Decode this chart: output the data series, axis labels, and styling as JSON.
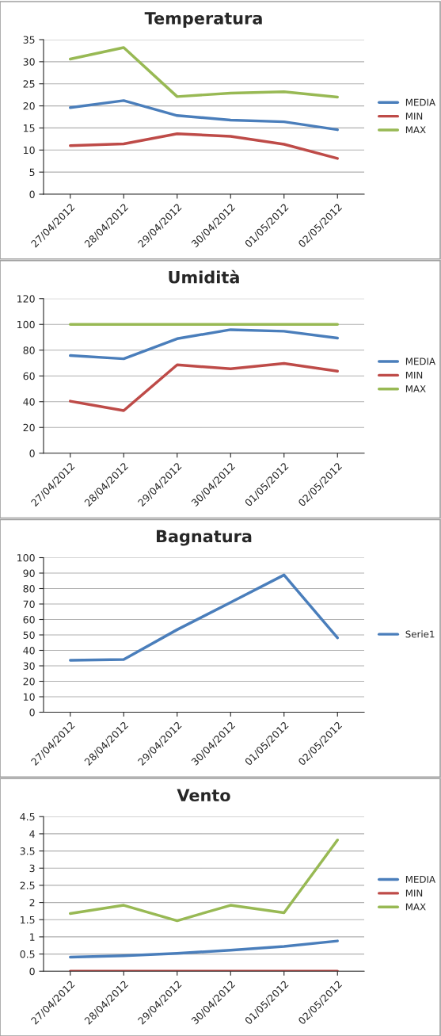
{
  "chart_data": [
    {
      "type": "line",
      "title": "Temperatura",
      "categories": [
        "27/04/2012",
        "28/04/2012",
        "29/04/2012",
        "30/04/2012",
        "01/05/2012",
        "02/05/2012"
      ],
      "series": [
        {
          "name": "MEDIA",
          "color": "#4a7ebb",
          "values": [
            19.6,
            21.2,
            17.8,
            16.8,
            16.4,
            14.6
          ]
        },
        {
          "name": "MIN",
          "color": "#be4b48",
          "values": [
            11.0,
            11.4,
            13.7,
            13.1,
            11.3,
            8.1
          ]
        },
        {
          "name": "MAX",
          "color": "#98b954",
          "values": [
            30.6,
            33.2,
            22.1,
            22.9,
            23.2,
            22.0
          ]
        }
      ],
      "ylim": [
        0,
        35
      ],
      "yticks": [
        0,
        5,
        10,
        15,
        20,
        25,
        30,
        35
      ],
      "grid": "y",
      "legend": "right",
      "marker": "none"
    },
    {
      "type": "line",
      "title": "Umidità",
      "categories": [
        "27/04/2012",
        "28/04/2012",
        "29/04/2012",
        "30/04/2012",
        "01/05/2012",
        "02/05/2012"
      ],
      "series": [
        {
          "name": "MEDIA",
          "color": "#4a7ebb",
          "values": [
            75.8,
            73.3,
            88.9,
            95.9,
            94.7,
            89.4
          ]
        },
        {
          "name": "MIN",
          "color": "#be4b48",
          "values": [
            40.4,
            33.1,
            68.6,
            65.5,
            69.7,
            63.7
          ]
        },
        {
          "name": "MAX",
          "color": "#98b954",
          "values": [
            100,
            100,
            100,
            100,
            100,
            100
          ]
        }
      ],
      "ylim": [
        0,
        120
      ],
      "yticks": [
        0,
        20,
        40,
        60,
        80,
        100,
        120
      ],
      "grid": "y",
      "legend": "right",
      "marker": "none"
    },
    {
      "type": "line",
      "title": "Bagnatura",
      "categories": [
        "27/04/2012",
        "28/04/2012",
        "29/04/2012",
        "30/04/2012",
        "01/05/2012",
        "02/05/2012"
      ],
      "series": [
        {
          "name": "Serie1",
          "color": "#4a7ebb",
          "values": [
            33.6,
            34.1,
            53.4,
            71,
            88.8,
            48.1
          ]
        }
      ],
      "ylim": [
        0,
        100
      ],
      "yticks": [
        0,
        10,
        20,
        30,
        40,
        50,
        60,
        70,
        80,
        90,
        100
      ],
      "grid": "y",
      "legend": "right",
      "marker": "none"
    },
    {
      "type": "line",
      "title": "Vento",
      "categories": [
        "27/04/2012",
        "28/04/2012",
        "29/04/2012",
        "30/04/2012",
        "01/05/2012",
        "02/05/2012"
      ],
      "series": [
        {
          "name": "MEDIA",
          "color": "#4a7ebb",
          "values": [
            0.41,
            0.45,
            0.52,
            0.61,
            0.72,
            0.88
          ]
        },
        {
          "name": "MIN",
          "color": "#be4b48",
          "values": [
            0,
            0,
            0,
            0,
            0,
            0
          ]
        },
        {
          "name": "MAX",
          "color": "#98b954",
          "values": [
            1.68,
            1.92,
            1.47,
            1.92,
            1.7,
            3.82
          ]
        }
      ],
      "ylim": [
        0,
        4.5
      ],
      "yticks": [
        0,
        0.5,
        1,
        1.5,
        2,
        2.5,
        3,
        3.5,
        4,
        4.5
      ],
      "grid": "y",
      "legend": "right",
      "marker": "none"
    }
  ]
}
